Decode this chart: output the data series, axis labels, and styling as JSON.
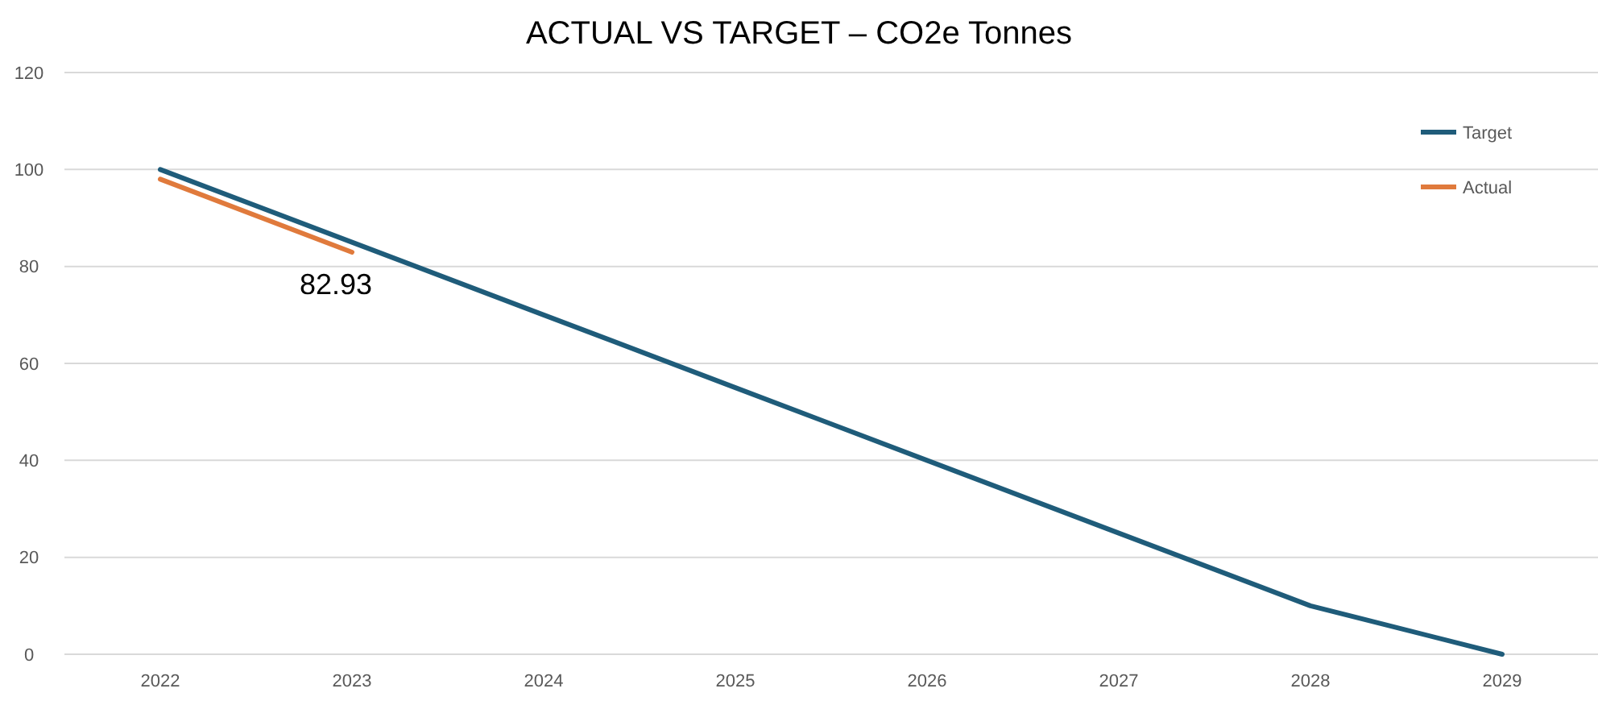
{
  "chart_data": {
    "type": "line",
    "title": "ACTUAL VS TARGET – CO2e Tonnes",
    "categories": [
      "2022",
      "2023",
      "2024",
      "2025",
      "2026",
      "2027",
      "2028",
      "2029"
    ],
    "series": [
      {
        "name": "Target",
        "color": "#1f5c7a",
        "values": [
          100,
          85,
          70,
          55,
          40,
          25,
          10,
          0
        ]
      },
      {
        "name": "Actual",
        "color": "#e07a3c",
        "values": [
          98,
          82.93,
          null,
          null,
          null,
          null,
          null,
          null
        ],
        "value_labels": [
          null,
          "82.93",
          null,
          null,
          null,
          null,
          null,
          null
        ]
      }
    ],
    "ylim": [
      0,
      120
    ],
    "yticks": [
      0,
      20,
      40,
      60,
      80,
      100,
      120
    ],
    "grid": "y",
    "legend": "top right",
    "marker": "none",
    "line_style": "solid"
  }
}
